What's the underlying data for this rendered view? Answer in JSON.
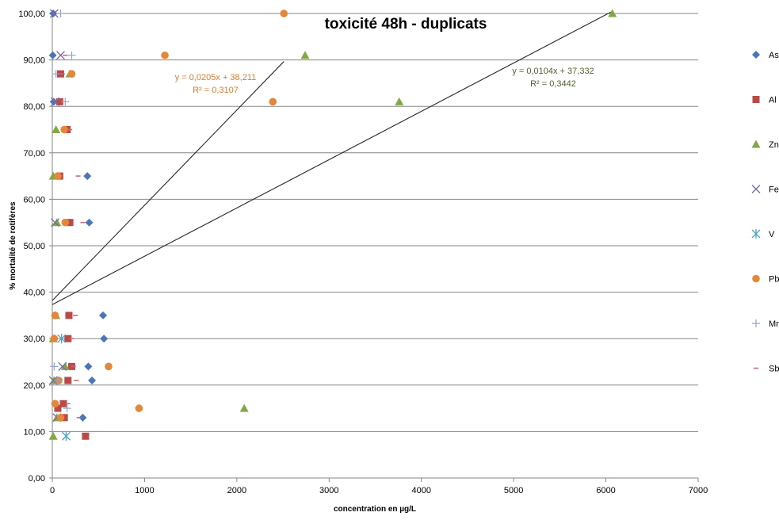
{
  "chart_data": {
    "type": "scatter",
    "title": "toxicité 48h - duplicats",
    "xlabel": "concentration en µg/L",
    "ylabel": "% mortalité de rotifères",
    "xlim": [
      0,
      7000
    ],
    "ylim": [
      0,
      100
    ],
    "x_ticks": [
      "0",
      "1000",
      "2000",
      "3000",
      "4000",
      "5000",
      "6000",
      "7000"
    ],
    "y_ticks": [
      "0,00",
      "10,00",
      "20,00",
      "30,00",
      "40,00",
      "50,00",
      "60,00",
      "70,00",
      "80,00",
      "90,00",
      "100,00"
    ],
    "horizontal_grid": true,
    "legend_position": "right",
    "series": [
      {
        "name": "As",
        "marker": "diamond",
        "color": "#4a76b8",
        "points": [
          [
            10,
            100
          ],
          [
            5,
            91
          ],
          [
            15,
            81
          ],
          [
            380,
            65
          ],
          [
            400,
            55
          ],
          [
            550,
            35
          ],
          [
            560,
            30
          ],
          [
            390,
            24
          ],
          [
            430,
            21
          ],
          [
            330,
            13
          ]
        ]
      },
      {
        "name": "Al",
        "marker": "square",
        "color": "#b94a48",
        "points": [
          [
            90,
            87
          ],
          [
            80,
            81
          ],
          [
            160,
            75
          ],
          [
            80,
            65
          ],
          [
            190,
            55
          ],
          [
            180,
            35
          ],
          [
            170,
            30
          ],
          [
            210,
            24
          ],
          [
            170,
            21
          ],
          [
            120,
            16
          ],
          [
            60,
            15
          ],
          [
            130,
            13
          ],
          [
            360,
            9
          ]
        ]
      },
      {
        "name": "Zn",
        "marker": "triangle",
        "color": "#82a845",
        "points": [
          [
            6070,
            100
          ],
          [
            2740,
            91
          ],
          [
            190,
            87
          ],
          [
            3760,
            81
          ],
          [
            40,
            75
          ],
          [
            10,
            65
          ],
          [
            50,
            55
          ],
          [
            40,
            35
          ],
          [
            10,
            30
          ],
          [
            140,
            24
          ],
          [
            20,
            21
          ],
          [
            2080,
            15
          ],
          [
            50,
            13
          ],
          [
            10,
            9
          ]
        ]
      },
      {
        "name": "Fe",
        "marker": "x",
        "color": "#7b68a6",
        "points": [
          [
            20,
            100
          ],
          [
            90,
            91
          ],
          [
            30,
            81
          ],
          [
            30,
            55
          ],
          [
            110,
            24
          ],
          [
            10,
            21
          ],
          [
            50,
            13
          ]
        ]
      },
      {
        "name": "V",
        "marker": "asterisk",
        "color": "#4aa6c0",
        "points": [
          [
            100,
            30
          ],
          [
            150,
            9
          ]
        ]
      },
      {
        "name": "Pb",
        "marker": "circle",
        "color": "#e3873b",
        "points": [
          [
            2510,
            100
          ],
          [
            1220,
            91
          ],
          [
            210,
            87
          ],
          [
            2390,
            81
          ],
          [
            130,
            75
          ],
          [
            60,
            65
          ],
          [
            140,
            55
          ],
          [
            30,
            35
          ],
          [
            20,
            30
          ],
          [
            610,
            24
          ],
          [
            70,
            21
          ],
          [
            940,
            15
          ],
          [
            30,
            16
          ],
          [
            90,
            13
          ]
        ]
      },
      {
        "name": "Mn",
        "marker": "plus",
        "color": "#8fa4d0",
        "points": [
          [
            90,
            100
          ],
          [
            210,
            91
          ],
          [
            40,
            87
          ],
          [
            140,
            81
          ],
          [
            20,
            24
          ],
          [
            60,
            21
          ],
          [
            160,
            15
          ]
        ]
      },
      {
        "name": "Sb",
        "marker": "dash",
        "color": "#c86b78",
        "points": [
          [
            140,
            91
          ],
          [
            110,
            87
          ],
          [
            190,
            75
          ],
          [
            280,
            65
          ],
          [
            330,
            55
          ],
          [
            250,
            35
          ],
          [
            210,
            30
          ],
          [
            230,
            24
          ],
          [
            260,
            21
          ],
          [
            170,
            16
          ],
          [
            290,
            13
          ]
        ]
      }
    ],
    "trendlines": [
      {
        "slope": 0.0205,
        "intercept": 38.211,
        "x_end": 2510,
        "equation": "y = 0,0205x + 38,211",
        "r2": "R² = 0,3107",
        "color": "#e07b2a"
      },
      {
        "slope": 0.0104,
        "intercept": 37.332,
        "x_end": 6070,
        "equation": "y = 0,0104x + 37,332",
        "r2": "R² = 0,3442",
        "color": "#4f6228"
      }
    ]
  }
}
